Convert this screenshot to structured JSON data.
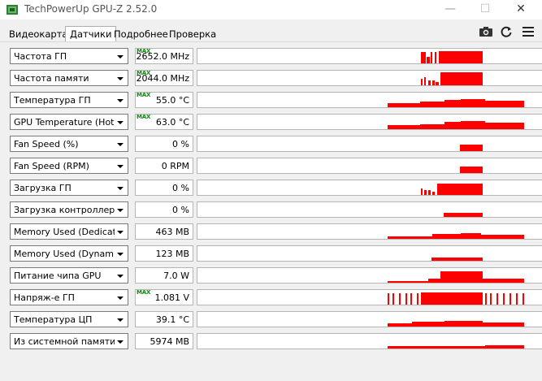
{
  "window": {
    "title": "TechPowerUp GPU-Z 2.52.0",
    "minimize": "—",
    "maximize": "☐",
    "close": "✕"
  },
  "tabs": [
    "Видеокарта",
    "Датчики",
    "Подробнее",
    "Проверка"
  ],
  "active_tab": 1,
  "toolbar": {
    "screenshot_icon": "camera-icon",
    "refresh_icon": "refresh-icon",
    "menu_icon": "hamburger-menu-icon"
  },
  "colors": {
    "graph": "#ff0000",
    "max_badge": "#0a8a0a"
  },
  "max_badge_text": "MAX",
  "sensors": [
    {
      "label": "Частота ГП",
      "value": "2652.0 MHz",
      "max": true
    },
    {
      "label": "Частота памяти",
      "value": "2044.0 MHz",
      "max": true
    },
    {
      "label": "Температура ГП",
      "value": "55.0 °C",
      "max": true
    },
    {
      "label": "GPU Temperature (Hot Spot)",
      "value": "63.0 °C",
      "max": true
    },
    {
      "label": "Fan Speed (%)",
      "value": "0 %",
      "max": false
    },
    {
      "label": "Fan Speed (RPM)",
      "value": "0 RPM",
      "max": false
    },
    {
      "label": "Загрузка ГП",
      "value": "0 %",
      "max": false
    },
    {
      "label": "Загрузка контроллера памяти",
      "value": "0 %",
      "max": false
    },
    {
      "label": "Memory Used (Dedicated)",
      "value": "463 MB",
      "max": false
    },
    {
      "label": "Memory Used (Dynamic)",
      "value": "123 MB",
      "max": false
    },
    {
      "label": "Питание чипа GPU",
      "value": "7.0 W",
      "max": false
    },
    {
      "label": "Напряж-е ГП",
      "value": "1.081 V",
      "max": true
    },
    {
      "label": "Температура ЦП",
      "value": "39.1 °C",
      "max": false
    },
    {
      "label": "Из системной памяти",
      "value": "5974 MB",
      "max": false
    }
  ]
}
